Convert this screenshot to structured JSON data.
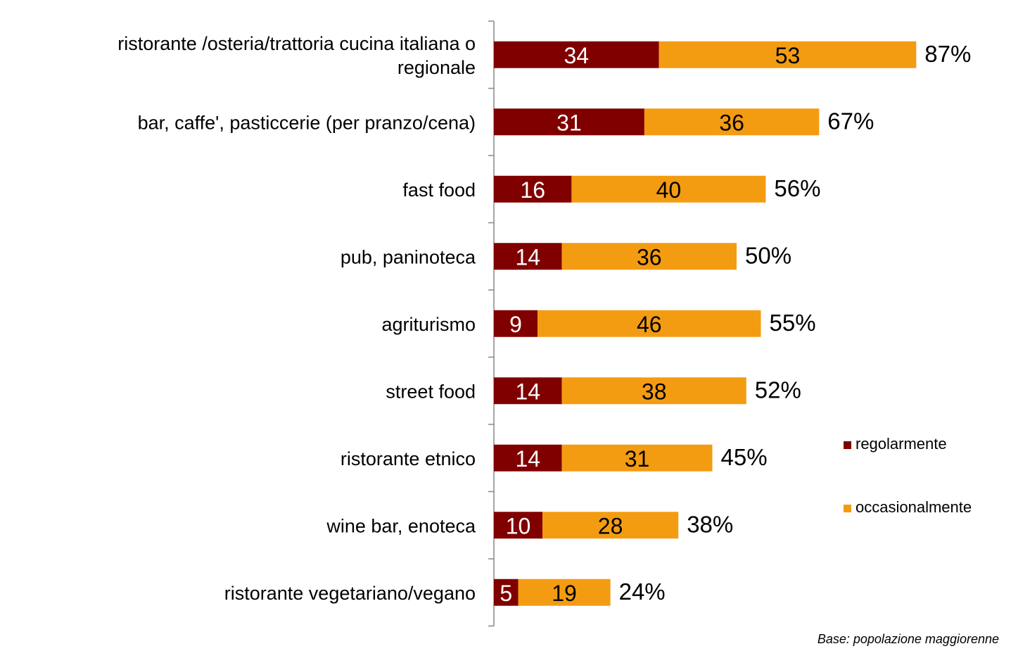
{
  "chart_data": {
    "type": "bar",
    "orientation": "horizontal",
    "stacked": true,
    "categories": [
      [
        "ristorante /osteria/trattoria cucina italiana o",
        "regionale"
      ],
      [
        "bar, caffe', pasticcerie (per pranzo/cena)"
      ],
      [
        "fast food"
      ],
      [
        "pub, paninoteca"
      ],
      [
        "agriturismo"
      ],
      [
        "street food"
      ],
      [
        "ristorante etnico "
      ],
      [
        "wine bar, enoteca"
      ],
      [
        "ristorante vegetariano/vegano"
      ]
    ],
    "series": [
      {
        "name": "regolarmente",
        "color": "#800000",
        "values": [
          34,
          31,
          16,
          14,
          9,
          14,
          14,
          10,
          5
        ]
      },
      {
        "name": "occasionalmente",
        "color": "#F39C12",
        "values": [
          53,
          36,
          40,
          36,
          46,
          38,
          31,
          28,
          19
        ]
      }
    ],
    "totals": [
      "87%",
      "67%",
      "56%",
      "50%",
      "55%",
      "52%",
      "45%",
      "38%",
      "24%"
    ],
    "xlim": [
      0,
      87
    ],
    "grid": false,
    "legend_position": "right",
    "footnote": "Base: popolazione maggiorenne"
  }
}
